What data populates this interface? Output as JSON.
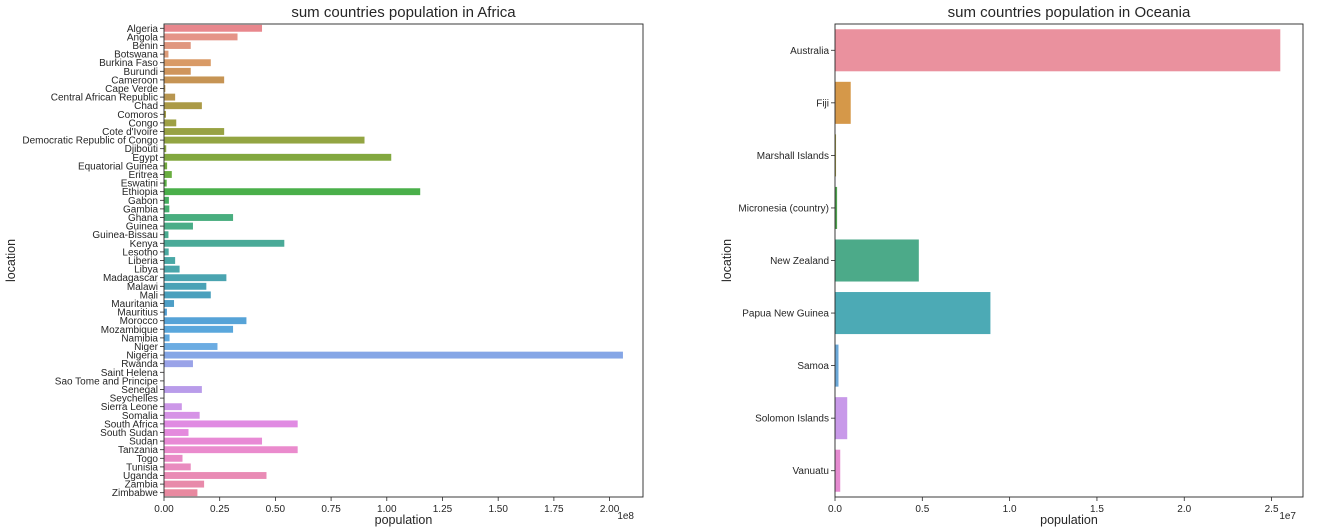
{
  "chart_data": [
    {
      "type": "bar",
      "orientation": "horizontal",
      "title": "sum countries population in Africa",
      "xlabel": "population",
      "ylabel": "location",
      "x_offset_label": "1e8",
      "xlim": [
        0,
        2.15
      ],
      "x_ticks": [
        "0.00",
        "0.25",
        "0.50",
        "0.75",
        "1.00",
        "1.25",
        "1.50",
        "1.75",
        "2.00"
      ],
      "x_tick_values": [
        0,
        0.25,
        0.5,
        0.75,
        1.0,
        1.25,
        1.5,
        1.75,
        2.0
      ],
      "grid": false,
      "legend": "none",
      "categories": [
        "Algeria",
        "Angola",
        "Benin",
        "Botswana",
        "Burkina Faso",
        "Burundi",
        "Cameroon",
        "Cape Verde",
        "Central African Republic",
        "Chad",
        "Comoros",
        "Congo",
        "Cote d'Ivoire",
        "Democratic Republic of Congo",
        "Djibouti",
        "Egypt",
        "Equatorial Guinea",
        "Eritrea",
        "Eswatini",
        "Ethiopia",
        "Gabon",
        "Gambia",
        "Ghana",
        "Guinea",
        "Guinea-Bissau",
        "Kenya",
        "Lesotho",
        "Liberia",
        "Libya",
        "Madagascar",
        "Malawi",
        "Mali",
        "Mauritania",
        "Mauritius",
        "Morocco",
        "Mozambique",
        "Namibia",
        "Niger",
        "Nigeria",
        "Rwanda",
        "Saint Helena",
        "Sao Tome and Principe",
        "Senegal",
        "Seychelles",
        "Sierra Leone",
        "Somalia",
        "South Africa",
        "South Sudan",
        "Sudan",
        "Tanzania",
        "Togo",
        "Tunisia",
        "Uganda",
        "Zambia",
        "Zimbabwe"
      ],
      "values": [
        0.44,
        0.33,
        0.12,
        0.02,
        0.21,
        0.12,
        0.27,
        0.006,
        0.05,
        0.17,
        0.009,
        0.055,
        0.27,
        0.9,
        0.01,
        1.02,
        0.014,
        0.035,
        0.012,
        1.15,
        0.022,
        0.024,
        0.31,
        0.13,
        0.02,
        0.54,
        0.021,
        0.05,
        0.07,
        0.28,
        0.19,
        0.21,
        0.045,
        0.013,
        0.37,
        0.31,
        0.025,
        0.24,
        2.06,
        0.13,
        0.0006,
        0.0022,
        0.17,
        0.001,
        0.08,
        0.16,
        0.6,
        0.11,
        0.44,
        0.6,
        0.083,
        0.12,
        0.46,
        0.18,
        0.15
      ],
      "colors": [
        "#e8878d",
        "#e59488",
        "#e0977f",
        "#dd9c79",
        "#d99a66",
        "#cf955c",
        "#c69454",
        "#b9944f",
        "#b89650",
        "#ab9a46",
        "#a39d45",
        "#9ea044",
        "#98a243",
        "#93a542",
        "#8aa641",
        "#82a83f",
        "#73aa3e",
        "#69ad40",
        "#5ab044",
        "#4aaf4a",
        "#46ae60",
        "#48ae70",
        "#49ae7f",
        "#4aad88",
        "#4aac91",
        "#4aaa98",
        "#4aa9a0",
        "#4aa8a6",
        "#4aa6ab",
        "#4aa4b0",
        "#4aa2b6",
        "#4aa0bd",
        "#4d9ec6",
        "#509ccf",
        "#56a3d7",
        "#5aa7dc",
        "#5ea9df",
        "#6cace2",
        "#85a6e6",
        "#9aa3e8",
        "#a4a0e8",
        "#ae9de9",
        "#b99cea",
        "#c39aea",
        "#cc97e8",
        "#d693e6",
        "#e08be2",
        "#e48add",
        "#e88ad5",
        "#ea8bcd",
        "#e98ac6",
        "#e98bbf",
        "#e98bb5",
        "#e88aaa",
        "#e889a0"
      ]
    },
    {
      "type": "bar",
      "orientation": "horizontal",
      "title": "sum countries population in Oceania",
      "xlabel": "population",
      "ylabel": "location",
      "x_offset_label": "1e7",
      "xlim": [
        0,
        2.68
      ],
      "x_ticks": [
        "0.0",
        "0.5",
        "1.0",
        "1.5",
        "2.0",
        "2.5"
      ],
      "x_tick_values": [
        0,
        0.5,
        1.0,
        1.5,
        2.0,
        2.5
      ],
      "grid": false,
      "legend": "none",
      "categories": [
        "Australia",
        "Fiji",
        "Marshall Islands",
        "Micronesia (country)",
        "New Zealand",
        "Papua New Guinea",
        "Samoa",
        "Solomon Islands",
        "Vanuatu"
      ],
      "values": [
        2.55,
        0.09,
        0.006,
        0.012,
        0.48,
        0.89,
        0.02,
        0.07,
        0.03
      ],
      "colors": [
        "#ea919e",
        "#d59849",
        "#a9a34c",
        "#4fa24f",
        "#4caa89",
        "#4caab5",
        "#6ba8d8",
        "#c899e9",
        "#e58ad0"
      ]
    }
  ]
}
